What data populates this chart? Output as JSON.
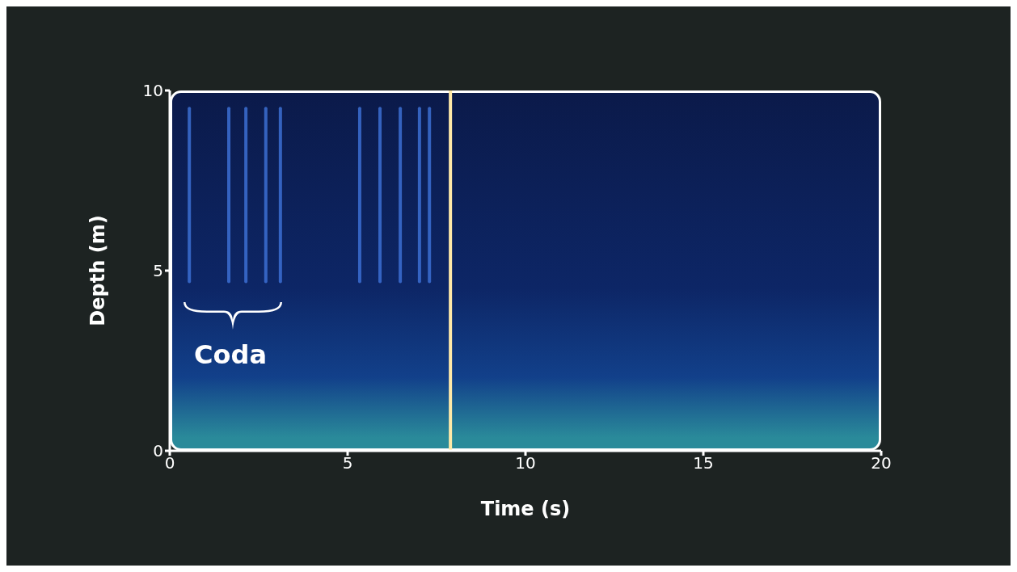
{
  "chart_data": {
    "type": "line",
    "xlabel": "Time (s)",
    "ylabel": "Depth (m)",
    "xlim": [
      0,
      20
    ],
    "xticks": [
      0,
      5,
      10,
      15,
      20
    ],
    "ylim": [
      0,
      10
    ],
    "yticks": [
      0,
      5,
      10
    ],
    "marker": "none",
    "series": [
      {
        "color": "#3c6fd2",
        "x": [
          0.55,
          0.55
        ],
        "values": [
          4.7,
          9.5
        ]
      },
      {
        "color": "#3c6fd2",
        "x": [
          1.66,
          1.66
        ],
        "values": [
          4.7,
          9.5
        ]
      },
      {
        "color": "#3c6fd2",
        "x": [
          2.14,
          2.14
        ],
        "values": [
          4.7,
          9.5
        ]
      },
      {
        "color": "#3c6fd2",
        "x": [
          2.7,
          2.7
        ],
        "values": [
          4.7,
          9.5
        ]
      },
      {
        "color": "#3c6fd2",
        "x": [
          3.11,
          3.11
        ],
        "values": [
          4.7,
          9.5
        ]
      },
      {
        "color": "#3c6fd2",
        "x": [
          5.34,
          5.34
        ],
        "values": [
          4.7,
          9.5
        ]
      },
      {
        "color": "#3c6fd2",
        "x": [
          5.91,
          5.91
        ],
        "values": [
          4.7,
          9.5
        ]
      },
      {
        "color": "#3c6fd2",
        "x": [
          6.48,
          6.48
        ],
        "values": [
          4.7,
          9.5
        ]
      },
      {
        "color": "#3c6fd2",
        "x": [
          7.02,
          7.02
        ],
        "values": [
          4.7,
          9.5
        ]
      },
      {
        "color": "#3c6fd2",
        "x": [
          7.3,
          7.3
        ],
        "values": [
          4.7,
          9.5
        ]
      }
    ],
    "ref_lines": [
      {
        "axis": "x",
        "value": 7.89,
        "color": "#ffe9a8"
      }
    ],
    "annotations": [
      "Coda"
    ]
  }
}
